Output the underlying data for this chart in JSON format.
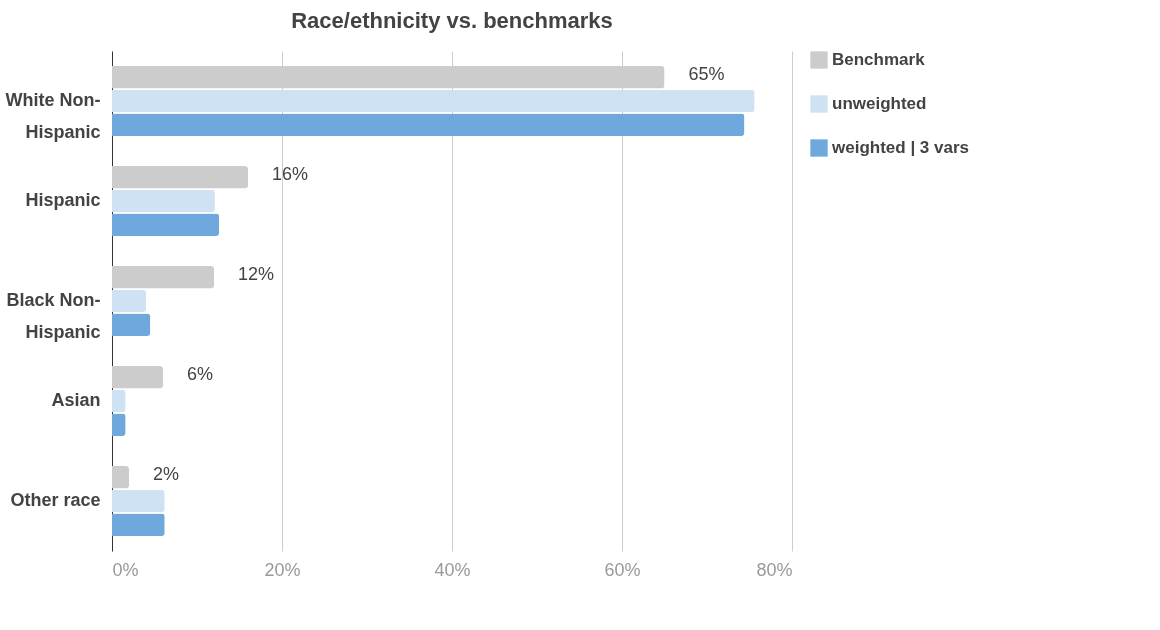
{
  "chart_data": {
    "type": "bar",
    "orientation": "horizontal",
    "title": "Race/ethnicity vs. benchmarks",
    "categories": [
      "White Non-Hispanic",
      "Hispanic",
      "Black Non-Hispanic",
      "Asian",
      "Other race"
    ],
    "series": [
      {
        "name": "Benchmark",
        "color": "#cccccc",
        "values": [
          65,
          16,
          12,
          6,
          2
        ],
        "value_labels": [
          "65%",
          "16%",
          "12%",
          "6%",
          "2%"
        ]
      },
      {
        "name": "unweighted",
        "color": "#cfe2f3",
        "values": [
          75.6,
          12.1,
          4.0,
          1.6,
          6.2
        ]
      },
      {
        "name": "weighted | 3 vars",
        "color": "#6fa8dc",
        "values": [
          74.4,
          12.6,
          4.5,
          1.6,
          6.2
        ]
      }
    ],
    "xlim": [
      0,
      80
    ],
    "xticks": [
      {
        "value": 0,
        "label": "0%"
      },
      {
        "value": 20,
        "label": "20%"
      },
      {
        "value": 40,
        "label": "40%"
      },
      {
        "value": 60,
        "label": "60%"
      },
      {
        "value": 80,
        "label": "80%"
      }
    ],
    "grid": "x",
    "legend": "top right"
  }
}
